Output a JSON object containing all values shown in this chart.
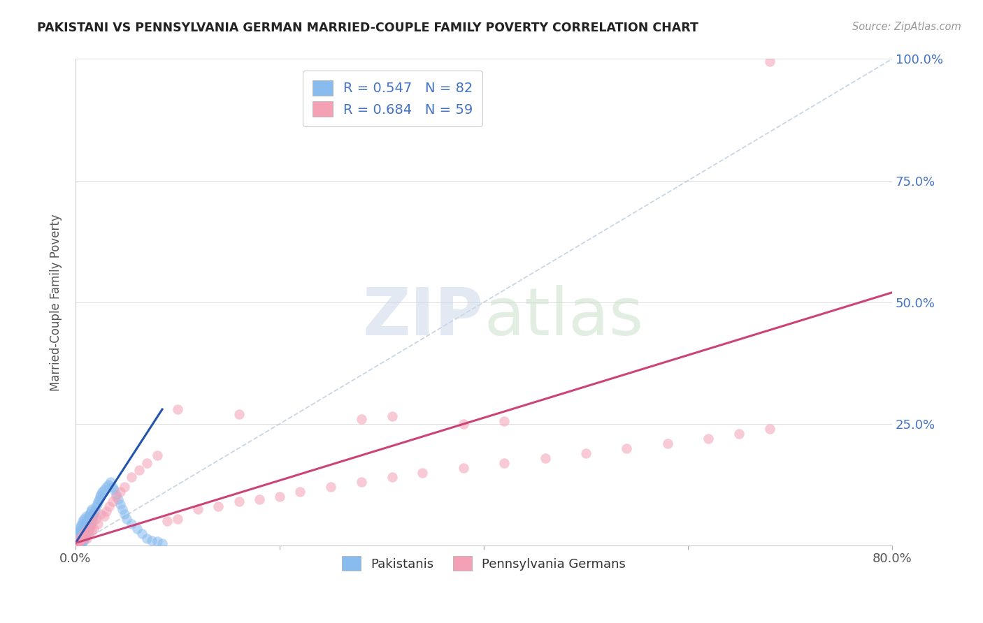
{
  "title": "PAKISTANI VS PENNSYLVANIA GERMAN MARRIED-COUPLE FAMILY POVERTY CORRELATION CHART",
  "source": "Source: ZipAtlas.com",
  "ylabel": "Married-Couple Family Poverty",
  "xlim": [
    0,
    0.8
  ],
  "ylim": [
    0,
    1.0
  ],
  "blue_color": "#88bbee",
  "pink_color": "#f4a0b5",
  "blue_line_color": "#2255aa",
  "pink_line_color": "#cc4477",
  "blue_R": 0.547,
  "blue_N": 82,
  "pink_R": 0.684,
  "pink_N": 59,
  "blue_label": "Pakistanis",
  "pink_label": "Pennsylvania Germans",
  "legend_text_color": "#4472c4",
  "background_color": "#ffffff",
  "grid_color": "#e0e0e0",
  "pak_x": [
    0.001,
    0.001,
    0.001,
    0.002,
    0.002,
    0.002,
    0.002,
    0.003,
    0.003,
    0.003,
    0.003,
    0.004,
    0.004,
    0.004,
    0.004,
    0.004,
    0.005,
    0.005,
    0.005,
    0.005,
    0.005,
    0.005,
    0.006,
    0.006,
    0.006,
    0.006,
    0.006,
    0.007,
    0.007,
    0.007,
    0.007,
    0.008,
    0.008,
    0.008,
    0.008,
    0.009,
    0.009,
    0.009,
    0.01,
    0.01,
    0.01,
    0.011,
    0.011,
    0.012,
    0.012,
    0.013,
    0.013,
    0.014,
    0.014,
    0.015,
    0.015,
    0.016,
    0.016,
    0.017,
    0.018,
    0.019,
    0.02,
    0.021,
    0.022,
    0.023,
    0.024,
    0.025,
    0.026,
    0.028,
    0.03,
    0.032,
    0.034,
    0.036,
    0.038,
    0.04,
    0.042,
    0.044,
    0.046,
    0.048,
    0.05,
    0.055,
    0.06,
    0.065,
    0.07,
    0.075,
    0.08,
    0.085
  ],
  "pak_y": [
    0.005,
    0.01,
    0.02,
    0.005,
    0.01,
    0.015,
    0.025,
    0.005,
    0.01,
    0.02,
    0.03,
    0.005,
    0.01,
    0.015,
    0.025,
    0.035,
    0.005,
    0.01,
    0.015,
    0.02,
    0.03,
    0.04,
    0.005,
    0.01,
    0.02,
    0.03,
    0.045,
    0.01,
    0.02,
    0.03,
    0.05,
    0.01,
    0.02,
    0.035,
    0.055,
    0.015,
    0.025,
    0.045,
    0.02,
    0.035,
    0.06,
    0.025,
    0.045,
    0.03,
    0.055,
    0.035,
    0.06,
    0.04,
    0.065,
    0.045,
    0.07,
    0.05,
    0.075,
    0.06,
    0.065,
    0.07,
    0.08,
    0.085,
    0.09,
    0.095,
    0.1,
    0.105,
    0.11,
    0.115,
    0.12,
    0.125,
    0.13,
    0.12,
    0.115,
    0.105,
    0.095,
    0.085,
    0.075,
    0.065,
    0.055,
    0.045,
    0.035,
    0.025,
    0.015,
    0.01,
    0.008,
    0.005
  ],
  "pg_x": [
    0.001,
    0.002,
    0.003,
    0.004,
    0.005,
    0.006,
    0.007,
    0.008,
    0.009,
    0.01,
    0.011,
    0.012,
    0.013,
    0.015,
    0.016,
    0.017,
    0.018,
    0.02,
    0.022,
    0.025,
    0.028,
    0.03,
    0.033,
    0.036,
    0.04,
    0.044,
    0.048,
    0.055,
    0.062,
    0.07,
    0.08,
    0.09,
    0.1,
    0.12,
    0.14,
    0.16,
    0.18,
    0.2,
    0.22,
    0.25,
    0.28,
    0.31,
    0.34,
    0.38,
    0.42,
    0.46,
    0.5,
    0.54,
    0.58,
    0.62,
    0.65,
    0.68,
    0.38,
    0.42,
    0.28,
    0.31,
    0.16,
    0.1,
    0.68
  ],
  "pg_y": [
    0.005,
    0.01,
    0.005,
    0.015,
    0.01,
    0.02,
    0.015,
    0.025,
    0.02,
    0.03,
    0.015,
    0.035,
    0.025,
    0.04,
    0.03,
    0.05,
    0.035,
    0.055,
    0.045,
    0.065,
    0.06,
    0.07,
    0.08,
    0.09,
    0.1,
    0.11,
    0.12,
    0.14,
    0.155,
    0.17,
    0.185,
    0.05,
    0.055,
    0.075,
    0.08,
    0.09,
    0.095,
    0.1,
    0.11,
    0.12,
    0.13,
    0.14,
    0.15,
    0.16,
    0.17,
    0.18,
    0.19,
    0.2,
    0.21,
    0.22,
    0.23,
    0.24,
    0.25,
    0.255,
    0.26,
    0.265,
    0.27,
    0.28,
    0.995
  ],
  "blue_line_x": [
    0.0,
    0.085
  ],
  "blue_line_y": [
    0.005,
    0.28
  ],
  "pink_line_x": [
    0.0,
    0.8
  ],
  "pink_line_y": [
    0.005,
    0.52
  ]
}
